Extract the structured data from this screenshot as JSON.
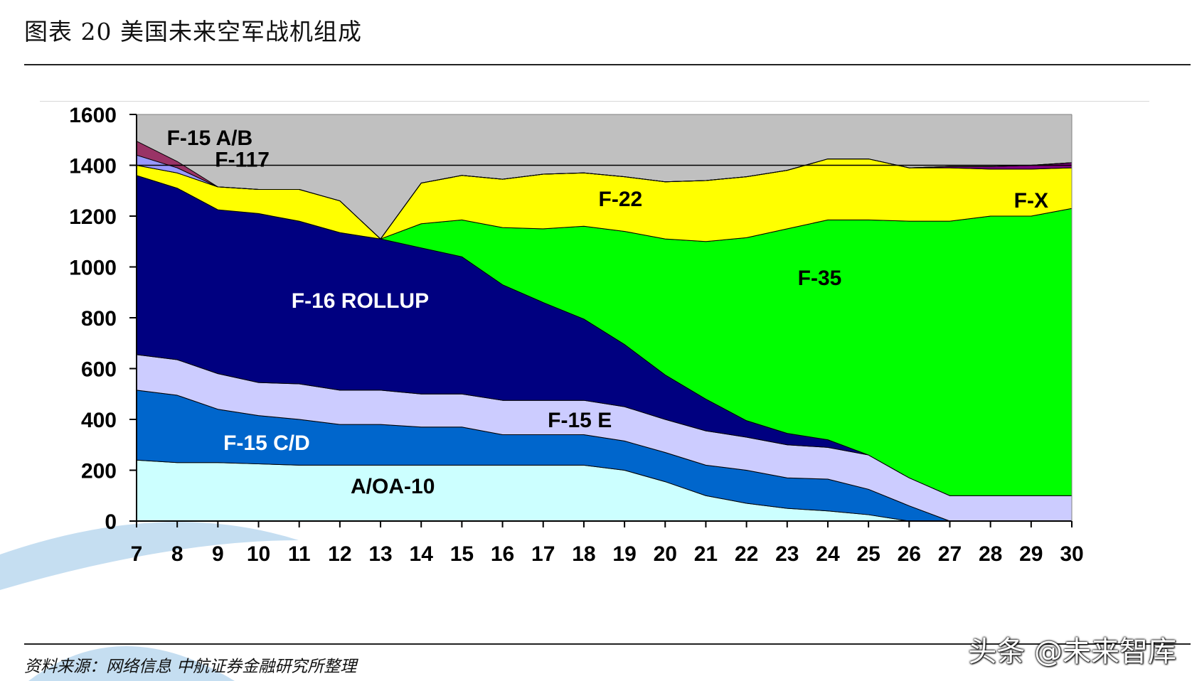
{
  "title": "图表 20 美国未来空军战机组成",
  "source": "资料来源：网络信息 中航证券金融研究所整理",
  "watermark": "头条 @未来智库",
  "chart_data": {
    "type": "area",
    "stacked": true,
    "title": "",
    "xlabel": "",
    "ylabel": "",
    "categories": [
      "7",
      "8",
      "9",
      "10",
      "11",
      "12",
      "13",
      "14",
      "15",
      "16",
      "17",
      "18",
      "19",
      "20",
      "21",
      "22",
      "23",
      "24",
      "25",
      "26",
      "27",
      "28",
      "29",
      "30"
    ],
    "ylim": [
      0,
      1600
    ],
    "yticks": [
      0,
      200,
      400,
      600,
      800,
      1000,
      1200,
      1400,
      1600
    ],
    "grid": true,
    "legend": "none (series labeled directly inside areas)",
    "series": [
      {
        "name": "A/OA-10",
        "color": "#ccffff",
        "values": [
          240,
          230,
          230,
          225,
          220,
          220,
          220,
          220,
          220,
          220,
          220,
          220,
          200,
          155,
          100,
          70,
          50,
          40,
          25,
          0,
          0,
          0,
          0,
          0
        ]
      },
      {
        "name": "F-15 C/D",
        "color": "#0066cc",
        "values": [
          275,
          265,
          210,
          190,
          180,
          160,
          160,
          150,
          150,
          120,
          120,
          120,
          115,
          115,
          120,
          130,
          120,
          125,
          100,
          60,
          0,
          0,
          0,
          0
        ]
      },
      {
        "name": "F-15 E",
        "color": "#ccccff",
        "values": [
          140,
          140,
          140,
          130,
          140,
          135,
          135,
          130,
          130,
          135,
          135,
          135,
          135,
          130,
          135,
          130,
          130,
          125,
          135,
          110,
          100,
          100,
          100,
          100
        ]
      },
      {
        "name": "F-16 ROLLUP",
        "color": "#000080",
        "values": [
          705,
          675,
          645,
          665,
          640,
          620,
          595,
          575,
          540,
          455,
          385,
          320,
          245,
          175,
          125,
          65,
          45,
          30,
          0,
          0,
          0,
          0,
          0,
          0
        ]
      },
      {
        "name": "F-35",
        "color": "#00ff00",
        "values": [
          0,
          0,
          0,
          0,
          0,
          0,
          0,
          95,
          145,
          225,
          290,
          365,
          445,
          535,
          620,
          720,
          805,
          865,
          925,
          1010,
          1080,
          1100,
          1100,
          1130
        ]
      },
      {
        "name": "F-22",
        "color": "#ffff00",
        "values": [
          40,
          60,
          90,
          95,
          125,
          125,
          0,
          160,
          175,
          190,
          215,
          210,
          215,
          225,
          240,
          240,
          230,
          240,
          240,
          210,
          210,
          185,
          185,
          160
        ]
      },
      {
        "name": "F-X",
        "color": "#800080",
        "values": [
          0,
          0,
          0,
          0,
          0,
          0,
          0,
          0,
          0,
          0,
          0,
          0,
          0,
          0,
          0,
          0,
          0,
          0,
          0,
          0,
          5,
          10,
          15,
          20
        ]
      },
      {
        "name": "F-117",
        "color": "#9999ff",
        "values": [
          40,
          20,
          0,
          0,
          0,
          0,
          0,
          0,
          0,
          0,
          0,
          0,
          0,
          0,
          0,
          0,
          0,
          0,
          0,
          0,
          0,
          0,
          0,
          0
        ]
      },
      {
        "name": "F-15 A/B",
        "color": "#993366",
        "values": [
          55,
          25,
          0,
          0,
          0,
          0,
          0,
          0,
          0,
          0,
          0,
          0,
          0,
          0,
          0,
          0,
          0,
          0,
          0,
          0,
          0,
          0,
          0,
          0
        ]
      }
    ],
    "area_labels": [
      {
        "text": "F-15 A/B",
        "color": "#000000",
        "x": "8.8",
        "y": 1510
      },
      {
        "text": "F-117",
        "color": "#000000",
        "x": "9.6",
        "y": 1425
      },
      {
        "text": "F-22",
        "color": "#000000",
        "x": "18.9",
        "y": 1270
      },
      {
        "text": "F-X",
        "color": "#000000",
        "x": "29.0",
        "y": 1265
      },
      {
        "text": "F-35",
        "color": "#000000",
        "x": "23.8",
        "y": 960
      },
      {
        "text": "F-16 ROLLUP",
        "color": "#ffffff",
        "x": "12.5",
        "y": 870
      },
      {
        "text": "F-15 E",
        "color": "#000000",
        "x": "17.9",
        "y": 400
      },
      {
        "text": "F-15 C/D",
        "color": "#ffffff",
        "x": "10.2",
        "y": 310
      },
      {
        "text": "A/OA-10",
        "color": "#000000",
        "x": "13.3",
        "y": 140
      }
    ]
  }
}
